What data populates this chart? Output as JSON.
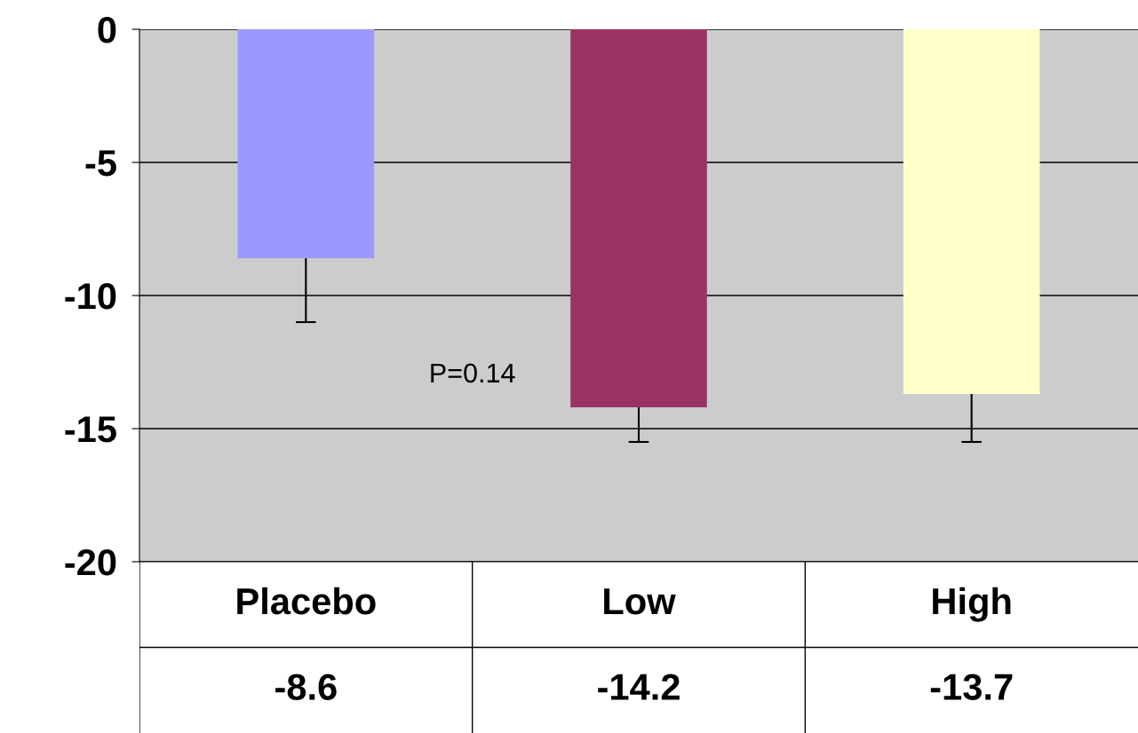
{
  "chart_data": {
    "type": "bar",
    "categories": [
      "Placebo",
      "Low",
      "High"
    ],
    "values": [
      -8.6,
      -14.2,
      -13.7
    ],
    "colors": [
      "#9999ff",
      "#993366",
      "#ffffcc"
    ],
    "errors": [
      [
        -11.0,
        -8.6
      ],
      [
        -15.5,
        -14.2
      ],
      [
        -15.5,
        -13.7
      ]
    ],
    "ylim": [
      -20,
      0
    ],
    "yticks": [
      0,
      -5,
      -10,
      -15,
      -20
    ],
    "grid": "y",
    "data_labels": true,
    "annotations": [
      "P=0.14"
    ]
  }
}
